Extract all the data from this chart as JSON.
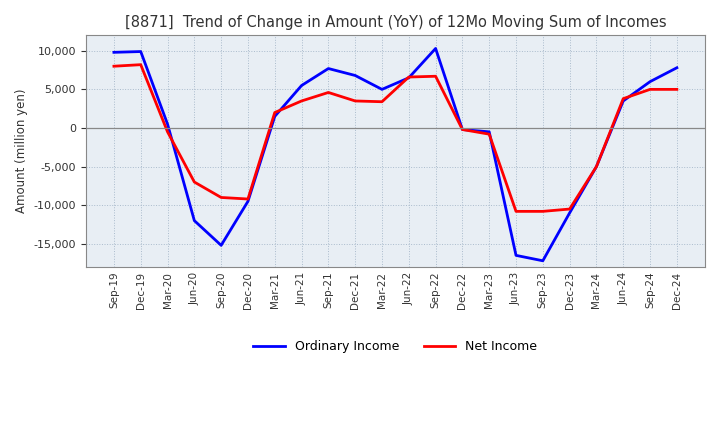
{
  "title": "[8871]  Trend of Change in Amount (YoY) of 12Mo Moving Sum of Incomes",
  "ylabel": "Amount (million yen)",
  "x_labels": [
    "Sep-19",
    "Dec-19",
    "Mar-20",
    "Jun-20",
    "Sep-20",
    "Dec-20",
    "Mar-21",
    "Jun-21",
    "Sep-21",
    "Dec-21",
    "Mar-22",
    "Jun-22",
    "Sep-22",
    "Dec-22",
    "Mar-23",
    "Jun-23",
    "Sep-23",
    "Dec-23",
    "Mar-24",
    "Jun-24",
    "Sep-24",
    "Dec-24"
  ],
  "ordinary_income": [
    9800,
    9900,
    500,
    -12000,
    -15200,
    -9500,
    1500,
    5500,
    7700,
    6800,
    5000,
    6500,
    10300,
    -200,
    -500,
    -16500,
    -17200,
    -11000,
    -5000,
    3500,
    6000,
    7800
  ],
  "net_income": [
    8000,
    8200,
    -500,
    -7000,
    -9000,
    -9200,
    2000,
    3500,
    4600,
    3500,
    3400,
    6600,
    6700,
    -200,
    -800,
    -10800,
    -10800,
    -10500,
    -5000,
    3800,
    5000,
    5000
  ],
  "ordinary_color": "#0000ff",
  "net_color": "#ff0000",
  "ylim": [
    -18000,
    12000
  ],
  "yticks": [
    10000,
    5000,
    0,
    -5000,
    -10000,
    -15000
  ],
  "background_color": "#ffffff",
  "plot_bg_color": "#e8eef4",
  "grid_color": "#aabbcc",
  "zero_line_color": "#888888"
}
